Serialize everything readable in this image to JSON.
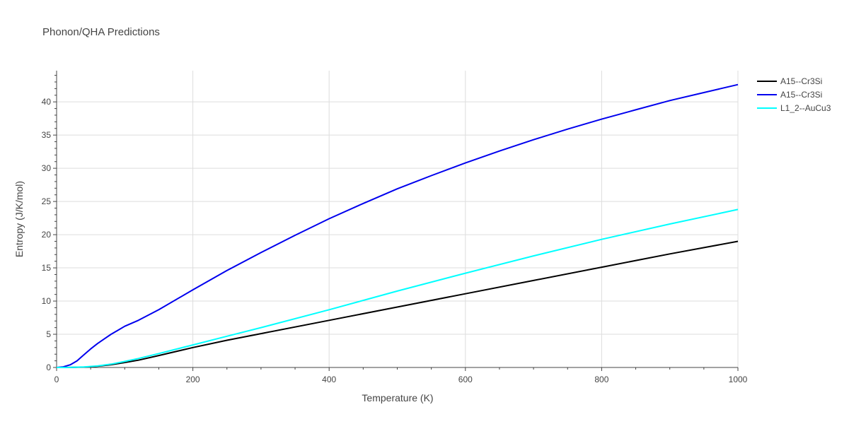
{
  "title": "Phonon/QHA Predictions",
  "chart_data": {
    "type": "line",
    "title": "Phonon/QHA Predictions",
    "xlabel": "Temperature (K)",
    "ylabel": "Entropy (J/K/mol)",
    "xlim": [
      0,
      1000
    ],
    "ylim": [
      0,
      44.7
    ],
    "x_ticks": [
      "0",
      "200",
      "400",
      "600",
      "800",
      "1000"
    ],
    "y_ticks": [
      "0",
      "5",
      "10",
      "15",
      "20",
      "25",
      "30",
      "35",
      "40"
    ],
    "grid": true,
    "legend_position": "top-right",
    "series": [
      {
        "name": "A15--Cr3Si",
        "color": "#000000",
        "x": [
          0,
          20,
          40,
          60,
          80,
          100,
          120,
          150,
          200,
          250,
          300,
          400,
          500,
          600,
          700,
          800,
          900,
          1000
        ],
        "y": [
          0,
          0.01,
          0.05,
          0.18,
          0.42,
          0.75,
          1.1,
          1.8,
          3.0,
          4.1,
          5.1,
          7.1,
          9.1,
          11.1,
          13.1,
          15.1,
          17.1,
          19.0
        ]
      },
      {
        "name": "A15--Cr3Si",
        "color": "#0000ee",
        "x": [
          0,
          10,
          20,
          30,
          40,
          50,
          60,
          70,
          80,
          90,
          100,
          120,
          150,
          200,
          250,
          300,
          350,
          400,
          450,
          500,
          550,
          600,
          650,
          700,
          750,
          800,
          850,
          900,
          950,
          1000
        ],
        "y": [
          0,
          0.1,
          0.4,
          1.0,
          1.9,
          2.8,
          3.6,
          4.3,
          5.0,
          5.6,
          6.2,
          7.1,
          8.7,
          11.7,
          14.6,
          17.3,
          19.9,
          22.4,
          24.7,
          26.9,
          28.9,
          30.8,
          32.6,
          34.3,
          35.9,
          37.4,
          38.8,
          40.2,
          41.4,
          42.6
        ]
      },
      {
        "name": "L1_2--AuCu3",
        "color": "#00ffff",
        "x": [
          0,
          20,
          40,
          60,
          80,
          100,
          120,
          150,
          200,
          250,
          300,
          400,
          500,
          600,
          700,
          800,
          900,
          1000
        ],
        "y": [
          0,
          0.01,
          0.07,
          0.22,
          0.5,
          0.9,
          1.35,
          2.1,
          3.4,
          4.7,
          6.0,
          8.7,
          11.5,
          14.2,
          16.8,
          19.3,
          21.6,
          23.8
        ]
      }
    ]
  }
}
